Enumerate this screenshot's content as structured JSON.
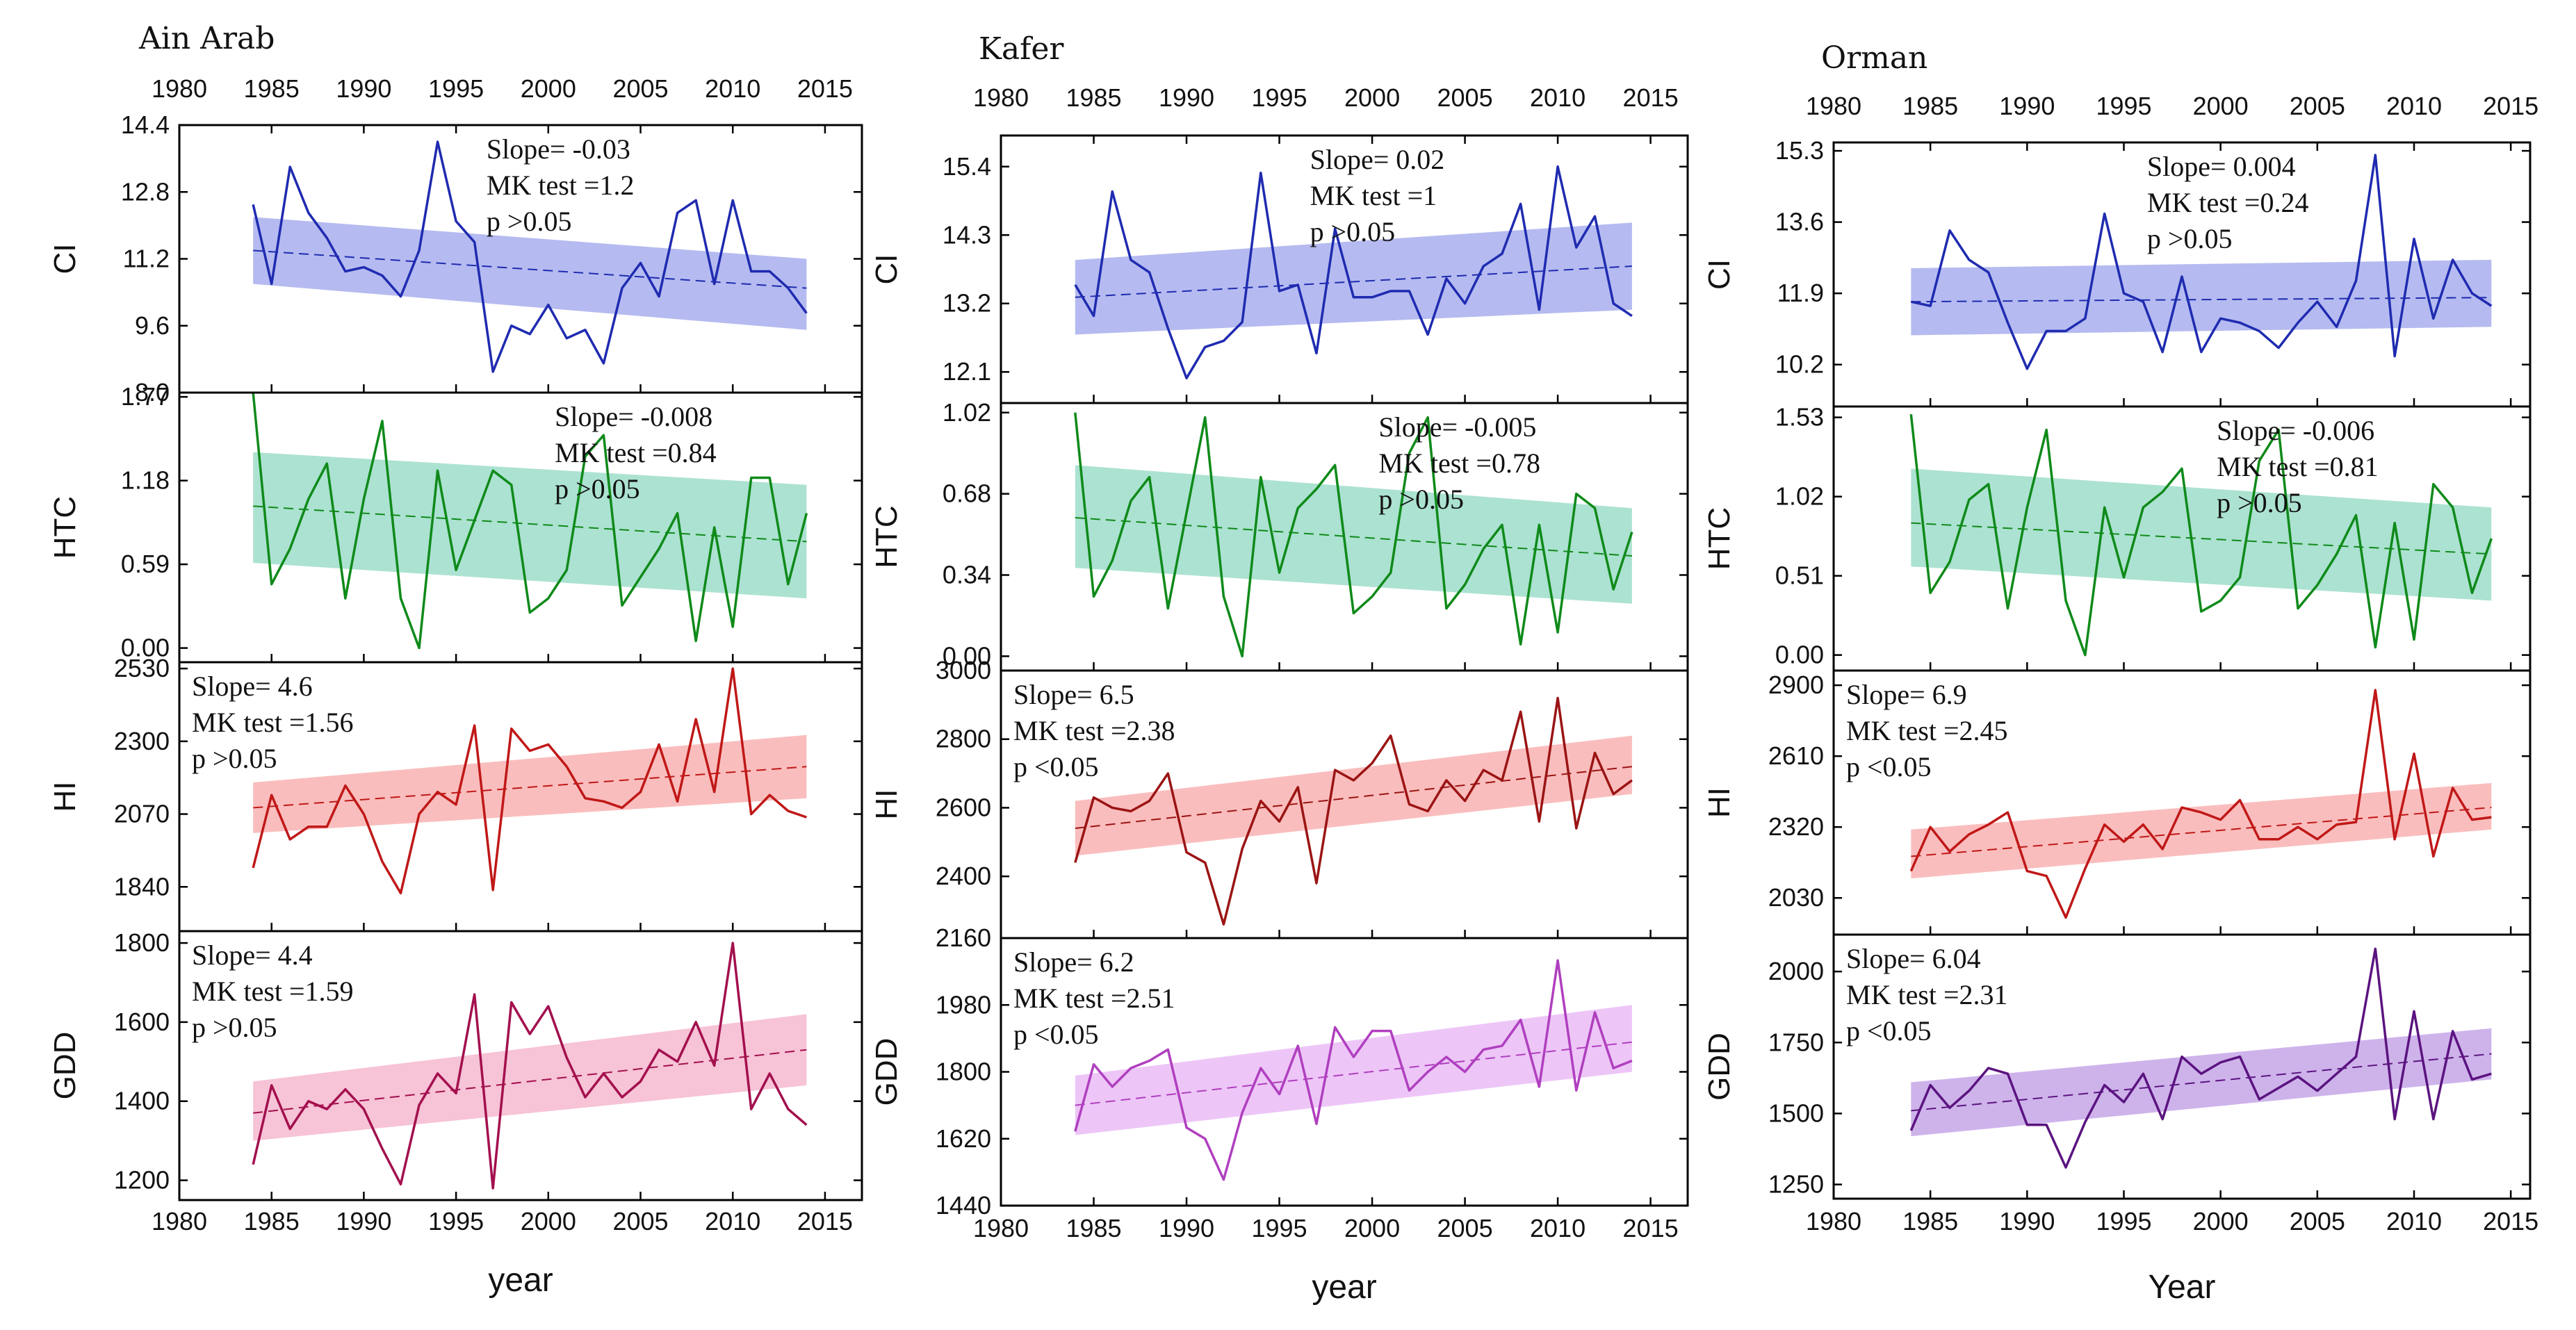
{
  "chart_data": [
    {
      "type": "line",
      "site": "Ain Arab",
      "x_label": "year",
      "x_range": [
        1980,
        2017
      ],
      "x_ticks": [
        1980,
        1985,
        1990,
        1995,
        2000,
        2005,
        2010,
        2015
      ],
      "x": [
        1984,
        1985,
        1986,
        1987,
        1988,
        1989,
        1990,
        1991,
        1992,
        1993,
        1994,
        1995,
        1996,
        1997,
        1998,
        1999,
        2000,
        2001,
        2002,
        2003,
        2004,
        2005,
        2006,
        2007,
        2008,
        2009,
        2010,
        2011,
        2012,
        2013,
        2014
      ],
      "panels": [
        {
          "index": "CI",
          "ylim": [
            8.0,
            14.4
          ],
          "yticks": [
            "8.0",
            "9.6",
            "11.2",
            "12.8",
            "14.4"
          ],
          "color": "#1f2bb0",
          "band_color": "#8e97e8",
          "annotation": [
            "Slope= -0.03",
            "MK test =1.2",
            "p >0.05"
          ],
          "trend": [
            11.4,
            10.5
          ],
          "band_start": [
            10.6,
            12.2
          ],
          "band_end": [
            9.5,
            11.2
          ],
          "values": [
            12.5,
            10.6,
            13.4,
            12.3,
            11.7,
            10.9,
            11.0,
            10.8,
            10.3,
            11.4,
            14.0,
            12.1,
            11.6,
            8.5,
            9.6,
            9.4,
            10.1,
            9.3,
            9.5,
            8.7,
            10.5,
            11.1,
            10.3,
            12.3,
            12.6,
            10.6,
            12.6,
            10.9,
            10.9,
            10.5,
            9.9
          ]
        },
        {
          "index": "HTC",
          "ylim": [
            -0.1,
            1.8
          ],
          "yticks": [
            "0.00",
            "0.59",
            "1.18",
            "1.77"
          ],
          "color": "#0f8a1a",
          "band_color": "#7fd3b8",
          "annotation": [
            "Slope= -0.008",
            "MK test =0.84",
            "p >0.05"
          ],
          "trend": [
            1.0,
            0.75
          ],
          "band_start": [
            0.6,
            1.38
          ],
          "band_end": [
            0.35,
            1.15
          ],
          "values": [
            1.8,
            0.45,
            0.7,
            1.05,
            1.3,
            0.35,
            1.05,
            1.6,
            0.35,
            0.0,
            1.25,
            0.55,
            0.9,
            1.25,
            1.15,
            0.25,
            0.35,
            0.55,
            1.35,
            1.5,
            0.3,
            0.5,
            0.7,
            0.95,
            0.05,
            0.85,
            0.15,
            1.2,
            1.2,
            0.45,
            0.95
          ]
        },
        {
          "index": "HI",
          "ylim": [
            1700,
            2550
          ],
          "yticks": [
            "1840",
            "2070",
            "2300",
            "2530"
          ],
          "color": "#c01818",
          "band_color": "#f79a9a",
          "annotation": [
            "Slope= 4.6",
            "MK test =1.56",
            "p >0.05"
          ],
          "trend": [
            2090,
            2220
          ],
          "band_start": [
            2010,
            2170
          ],
          "band_end": [
            2120,
            2320
          ],
          "values": [
            1900,
            2130,
            1990,
            2030,
            2030,
            2160,
            2070,
            1920,
            1820,
            2070,
            2140,
            2100,
            2350,
            1830,
            2340,
            2270,
            2290,
            2220,
            2120,
            2110,
            2090,
            2140,
            2290,
            2110,
            2370,
            2140,
            2530,
            2070,
            2130,
            2080,
            2060
          ]
        },
        {
          "index": "GDD",
          "ylim": [
            1150,
            1830
          ],
          "yticks": [
            "1200",
            "1400",
            "1600",
            "1800"
          ],
          "color": "#a3104e",
          "band_color": "#f2a3c2",
          "annotation": [
            "Slope= 4.4",
            "MK test =1.59",
            "p >0.05"
          ],
          "trend": [
            1370,
            1530
          ],
          "band_start": [
            1300,
            1450
          ],
          "band_end": [
            1440,
            1620
          ],
          "values": [
            1240,
            1440,
            1330,
            1400,
            1380,
            1430,
            1380,
            1280,
            1190,
            1390,
            1470,
            1420,
            1670,
            1180,
            1650,
            1570,
            1640,
            1510,
            1410,
            1470,
            1410,
            1450,
            1530,
            1500,
            1600,
            1490,
            1800,
            1380,
            1470,
            1380,
            1340
          ]
        }
      ]
    },
    {
      "type": "line",
      "site": "Kafer",
      "x_label": "year",
      "x_range": [
        1980,
        2017
      ],
      "x_ticks": [
        1980,
        1985,
        1990,
        1995,
        2000,
        2005,
        2010,
        2015
      ],
      "x": [
        1984,
        1985,
        1986,
        1987,
        1988,
        1989,
        1990,
        1991,
        1992,
        1993,
        1994,
        1995,
        1996,
        1997,
        1998,
        1999,
        2000,
        2001,
        2002,
        2003,
        2004,
        2005,
        2006,
        2007,
        2008,
        2009,
        2010,
        2011,
        2012,
        2013,
        2014
      ],
      "panels": [
        {
          "index": "CI",
          "ylim": [
            11.6,
            15.9
          ],
          "yticks": [
            "12.1",
            "13.2",
            "14.3",
            "15.4"
          ],
          "color": "#1f2bb0",
          "band_color": "#8e97e8",
          "annotation": [
            "Slope= 0.02",
            "MK test =1",
            "p >0.05"
          ],
          "trend": [
            13.3,
            13.8
          ],
          "band_start": [
            12.7,
            13.9
          ],
          "band_end": [
            13.1,
            14.5
          ],
          "values": [
            13.5,
            13.0,
            15.0,
            13.9,
            13.7,
            12.8,
            12.0,
            12.5,
            12.6,
            12.9,
            15.3,
            13.4,
            13.5,
            12.4,
            14.4,
            13.3,
            13.3,
            13.4,
            13.4,
            12.7,
            13.6,
            13.2,
            13.8,
            14.0,
            14.8,
            13.1,
            15.4,
            14.1,
            14.6,
            13.2,
            13.0
          ]
        },
        {
          "index": "HTC",
          "ylim": [
            -0.06,
            1.06
          ],
          "yticks": [
            "0.00",
            "0.34",
            "0.68",
            "1.02"
          ],
          "color": "#0f8a1a",
          "band_color": "#7fd3b8",
          "annotation": [
            "Slope= -0.005",
            "MK test =0.78",
            "p >0.05"
          ],
          "trend": [
            0.58,
            0.42
          ],
          "band_start": [
            0.37,
            0.8
          ],
          "band_end": [
            0.22,
            0.62
          ],
          "values": [
            1.02,
            0.25,
            0.4,
            0.65,
            0.75,
            0.2,
            0.6,
            1.0,
            0.25,
            0.0,
            0.75,
            0.35,
            0.62,
            0.7,
            0.8,
            0.18,
            0.25,
            0.35,
            0.85,
            1.0,
            0.2,
            0.3,
            0.45,
            0.55,
            0.05,
            0.55,
            0.1,
            0.68,
            0.62,
            0.28,
            0.52
          ]
        },
        {
          "index": "HI",
          "ylim": [
            2220,
            3000
          ],
          "yticks": [
            "2400",
            "2600",
            "2800",
            "3000"
          ],
          "color": "#9b1414",
          "band_color": "#f79a9a",
          "annotation": [
            "Slope= 6.5",
            "MK test =2.38",
            "p <0.05"
          ],
          "trend": [
            2540,
            2720
          ],
          "band_start": [
            2460,
            2620
          ],
          "band_end": [
            2640,
            2810
          ],
          "values": [
            2440,
            2630,
            2600,
            2590,
            2620,
            2700,
            2470,
            2440,
            2260,
            2480,
            2620,
            2560,
            2660,
            2380,
            2710,
            2680,
            2730,
            2810,
            2610,
            2590,
            2680,
            2620,
            2710,
            2680,
            2880,
            2560,
            2920,
            2540,
            2760,
            2640,
            2680
          ]
        },
        {
          "index": "GDD",
          "ylim": [
            1440,
            2160
          ],
          "yticks": [
            "1440",
            "1620",
            "1800",
            "1980",
            "2160"
          ],
          "top_tick_display": "2160",
          "color": "#b03fbf",
          "band_color": "#e3a8f2",
          "annotation": [
            "Slope= 6.2",
            "MK test =2.51",
            "p <0.05"
          ],
          "trend": [
            1710,
            1880
          ],
          "band_start": [
            1630,
            1790
          ],
          "band_end": [
            1800,
            1980
          ],
          "values": [
            1640,
            1820,
            1760,
            1810,
            1830,
            1860,
            1650,
            1620,
            1510,
            1690,
            1810,
            1740,
            1870,
            1660,
            1920,
            1840,
            1910,
            1910,
            1750,
            1800,
            1840,
            1800,
            1860,
            1870,
            1940,
            1760,
            2100,
            1750,
            1960,
            1810,
            1830
          ]
        }
      ]
    },
    {
      "type": "line",
      "site": "Orman",
      "x_label": "Year",
      "x_range": [
        1980,
        2016
      ],
      "x_ticks": [
        1980,
        1985,
        1990,
        1995,
        2000,
        2005,
        2010,
        2015
      ],
      "x": [
        1984,
        1985,
        1986,
        1987,
        1988,
        1989,
        1990,
        1991,
        1992,
        1993,
        1994,
        1995,
        1996,
        1997,
        1998,
        1999,
        2000,
        2001,
        2002,
        2003,
        2004,
        2005,
        2006,
        2007,
        2008,
        2009,
        2010,
        2011,
        2012,
        2013,
        2014
      ],
      "panels": [
        {
          "index": "CI",
          "ylim": [
            9.2,
            15.5
          ],
          "yticks": [
            "10.2",
            "11.9",
            "13.6",
            "15.3"
          ],
          "color": "#1f2bb0",
          "band_color": "#8e97e8",
          "annotation": [
            "Slope= 0.004",
            "MK test =0.24",
            "p >0.05"
          ],
          "trend": [
            11.7,
            11.8
          ],
          "band_start": [
            10.9,
            12.5
          ],
          "band_end": [
            11.1,
            12.7
          ],
          "values": [
            11.7,
            11.6,
            13.4,
            12.7,
            12.4,
            11.2,
            10.1,
            11.0,
            11.0,
            11.3,
            13.8,
            11.9,
            11.7,
            10.5,
            12.3,
            10.5,
            11.3,
            11.2,
            11.0,
            10.6,
            11.2,
            11.7,
            11.1,
            12.2,
            15.2,
            10.4,
            13.2,
            11.3,
            12.7,
            11.9,
            11.6
          ]
        },
        {
          "index": "HTC",
          "ylim": [
            -0.1,
            1.6
          ],
          "yticks": [
            "0.00",
            "0.51",
            "1.02",
            "1.53"
          ],
          "color": "#0f8a1a",
          "band_color": "#7fd3b8",
          "annotation": [
            "Slope= -0.006",
            "MK test =0.81",
            "p >0.05"
          ],
          "trend": [
            0.85,
            0.65
          ],
          "band_start": [
            0.57,
            1.2
          ],
          "band_end": [
            0.35,
            0.95
          ],
          "values": [
            1.55,
            0.4,
            0.6,
            1.0,
            1.1,
            0.3,
            0.95,
            1.45,
            0.35,
            0.0,
            0.95,
            0.5,
            0.95,
            1.05,
            1.2,
            0.28,
            0.35,
            0.5,
            1.25,
            1.45,
            0.3,
            0.45,
            0.65,
            0.9,
            0.05,
            0.85,
            0.1,
            1.1,
            0.95,
            0.4,
            0.75
          ]
        },
        {
          "index": "HI",
          "ylim": [
            1880,
            2960
          ],
          "yticks": [
            "2030",
            "2320",
            "2610",
            "2900"
          ],
          "color": "#c01818",
          "band_color": "#f79a9a",
          "annotation": [
            "Slope= 6.9",
            "MK test =2.45",
            "p <0.05"
          ],
          "trend": [
            2200,
            2400
          ],
          "band_start": [
            2110,
            2310
          ],
          "band_end": [
            2310,
            2500
          ],
          "values": [
            2140,
            2320,
            2220,
            2290,
            2330,
            2380,
            2140,
            2120,
            1950,
            2150,
            2330,
            2260,
            2330,
            2230,
            2400,
            2380,
            2350,
            2430,
            2270,
            2270,
            2320,
            2270,
            2330,
            2340,
            2880,
            2270,
            2620,
            2200,
            2480,
            2350,
            2360
          ]
        },
        {
          "index": "GDD",
          "ylim": [
            1200,
            2130
          ],
          "yticks": [
            "1250",
            "1500",
            "1750",
            "2000"
          ],
          "color": "#5b1480",
          "band_color": "#b38be0",
          "annotation": [
            "Slope= 6.04",
            "MK test =2.31",
            "p <0.05"
          ],
          "trend": [
            1510,
            1710
          ],
          "band_start": [
            1420,
            1610
          ],
          "band_end": [
            1620,
            1800
          ],
          "values": [
            1440,
            1600,
            1520,
            1580,
            1660,
            1640,
            1460,
            1460,
            1310,
            1470,
            1600,
            1540,
            1640,
            1480,
            1700,
            1640,
            1680,
            1700,
            1550,
            1590,
            1630,
            1580,
            1640,
            1700,
            2080,
            1480,
            1860,
            1480,
            1790,
            1620,
            1640
          ]
        }
      ]
    }
  ]
}
